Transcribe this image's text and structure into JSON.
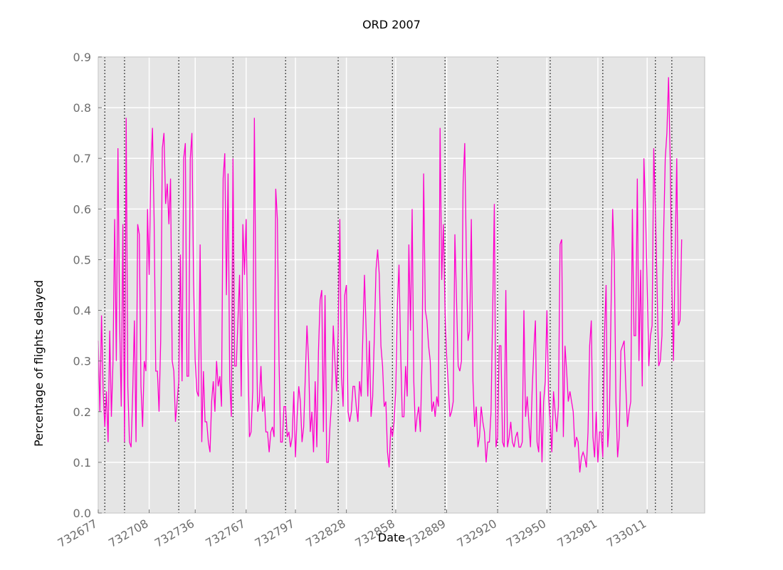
{
  "chart_data": {
    "type": "line",
    "title": "ORD 2007",
    "xlabel": "Date",
    "ylabel": "Percentage of flights delayed",
    "xlim": [
      732677,
      733046
    ],
    "ylim": [
      0.0,
      0.9
    ],
    "xticks": [
      732677,
      732708,
      732736,
      732767,
      732797,
      732828,
      732858,
      732889,
      732920,
      732950,
      732981,
      733011
    ],
    "xtick_labels": [
      "732677",
      "732708",
      "732736",
      "732767",
      "732797",
      "732828",
      "732858",
      "732889",
      "732920",
      "732950",
      "732981",
      "733011"
    ],
    "yticks": [
      0.0,
      0.1,
      0.2,
      0.3,
      0.4,
      0.5,
      0.6,
      0.7,
      0.8,
      0.9
    ],
    "ytick_labels": [
      "0.0",
      "0.1",
      "0.2",
      "0.3",
      "0.4",
      "0.5",
      "0.6",
      "0.7",
      "0.8",
      "0.9"
    ],
    "grid": true,
    "background": "#e5e5e5",
    "series": [
      {
        "color": "#ff00cc",
        "x_start": 732677,
        "x_step": 1,
        "values": [
          0.34,
          0.2,
          0.39,
          0.24,
          0.17,
          0.24,
          0.14,
          0.36,
          0.19,
          0.3,
          0.58,
          0.3,
          0.72,
          0.38,
          0.21,
          0.57,
          0.14,
          0.78,
          0.25,
          0.14,
          0.13,
          0.24,
          0.38,
          0.14,
          0.57,
          0.55,
          0.25,
          0.17,
          0.3,
          0.28,
          0.6,
          0.47,
          0.68,
          0.76,
          0.58,
          0.28,
          0.28,
          0.2,
          0.34,
          0.72,
          0.75,
          0.61,
          0.65,
          0.57,
          0.66,
          0.3,
          0.28,
          0.18,
          0.22,
          0.26,
          0.51,
          0.26,
          0.7,
          0.73,
          0.27,
          0.27,
          0.7,
          0.75,
          0.46,
          0.3,
          0.24,
          0.23,
          0.53,
          0.14,
          0.28,
          0.18,
          0.18,
          0.14,
          0.12,
          0.22,
          0.26,
          0.2,
          0.3,
          0.25,
          0.27,
          0.21,
          0.66,
          0.71,
          0.43,
          0.67,
          0.26,
          0.19,
          0.7,
          0.29,
          0.29,
          0.38,
          0.47,
          0.23,
          0.57,
          0.47,
          0.58,
          0.33,
          0.15,
          0.16,
          0.24,
          0.78,
          0.4,
          0.2,
          0.22,
          0.29,
          0.2,
          0.23,
          0.16,
          0.16,
          0.12,
          0.16,
          0.17,
          0.15,
          0.64,
          0.58,
          0.3,
          0.14,
          0.14,
          0.21,
          0.21,
          0.15,
          0.16,
          0.13,
          0.15,
          0.24,
          0.11,
          0.19,
          0.25,
          0.22,
          0.14,
          0.17,
          0.27,
          0.37,
          0.3,
          0.16,
          0.2,
          0.12,
          0.26,
          0.13,
          0.32,
          0.42,
          0.44,
          0.16,
          0.43,
          0.1,
          0.1,
          0.17,
          0.22,
          0.37,
          0.3,
          0.24,
          0.36,
          0.58,
          0.27,
          0.21,
          0.43,
          0.45,
          0.2,
          0.18,
          0.2,
          0.25,
          0.25,
          0.21,
          0.18,
          0.26,
          0.23,
          0.35,
          0.47,
          0.36,
          0.23,
          0.34,
          0.19,
          0.23,
          0.35,
          0.48,
          0.52,
          0.47,
          0.33,
          0.29,
          0.21,
          0.22,
          0.12,
          0.09,
          0.17,
          0.15,
          0.18,
          0.24,
          0.41,
          0.49,
          0.32,
          0.19,
          0.19,
          0.29,
          0.23,
          0.53,
          0.36,
          0.6,
          0.26,
          0.16,
          0.19,
          0.21,
          0.16,
          0.3,
          0.67,
          0.4,
          0.38,
          0.33,
          0.3,
          0.2,
          0.22,
          0.19,
          0.23,
          0.21,
          0.76,
          0.46,
          0.57,
          0.4,
          0.31,
          0.25,
          0.19,
          0.2,
          0.22,
          0.55,
          0.42,
          0.29,
          0.28,
          0.3,
          0.65,
          0.73,
          0.5,
          0.34,
          0.36,
          0.58,
          0.26,
          0.17,
          0.21,
          0.13,
          0.15,
          0.21,
          0.18,
          0.16,
          0.1,
          0.14,
          0.14,
          0.2,
          0.4,
          0.61,
          0.13,
          0.15,
          0.33,
          0.33,
          0.14,
          0.13,
          0.44,
          0.13,
          0.15,
          0.18,
          0.14,
          0.13,
          0.15,
          0.16,
          0.13,
          0.13,
          0.14,
          0.4,
          0.19,
          0.23,
          0.18,
          0.13,
          0.24,
          0.32,
          0.38,
          0.14,
          0.12,
          0.24,
          0.1,
          0.22,
          0.26,
          0.4,
          0.23,
          0.18,
          0.12,
          0.24,
          0.2,
          0.16,
          0.21,
          0.53,
          0.54,
          0.15,
          0.33,
          0.28,
          0.22,
          0.24,
          0.22,
          0.2,
          0.13,
          0.15,
          0.14,
          0.08,
          0.11,
          0.12,
          0.11,
          0.09,
          0.16,
          0.33,
          0.38,
          0.15,
          0.11,
          0.2,
          0.1,
          0.16,
          0.16,
          0.11,
          0.35,
          0.45,
          0.13,
          0.18,
          0.4,
          0.6,
          0.5,
          0.22,
          0.11,
          0.15,
          0.32,
          0.33,
          0.34,
          0.25,
          0.17,
          0.2,
          0.22,
          0.6,
          0.35,
          0.35,
          0.66,
          0.3,
          0.48,
          0.25,
          0.7,
          0.6,
          0.45,
          0.29,
          0.35,
          0.37,
          0.72,
          0.6,
          0.45,
          0.29,
          0.3,
          0.35,
          0.55,
          0.7,
          0.75,
          0.86,
          0.7,
          0.45,
          0.3,
          0.5,
          0.7,
          0.37,
          0.38,
          0.54
        ]
      }
    ],
    "vlines": {
      "style": "dotted",
      "color": "#000000",
      "x": [
        732681,
        732693,
        732726,
        732759,
        732791,
        732823,
        732856,
        732888,
        732920,
        732952,
        732984,
        733016,
        733026
      ]
    }
  }
}
